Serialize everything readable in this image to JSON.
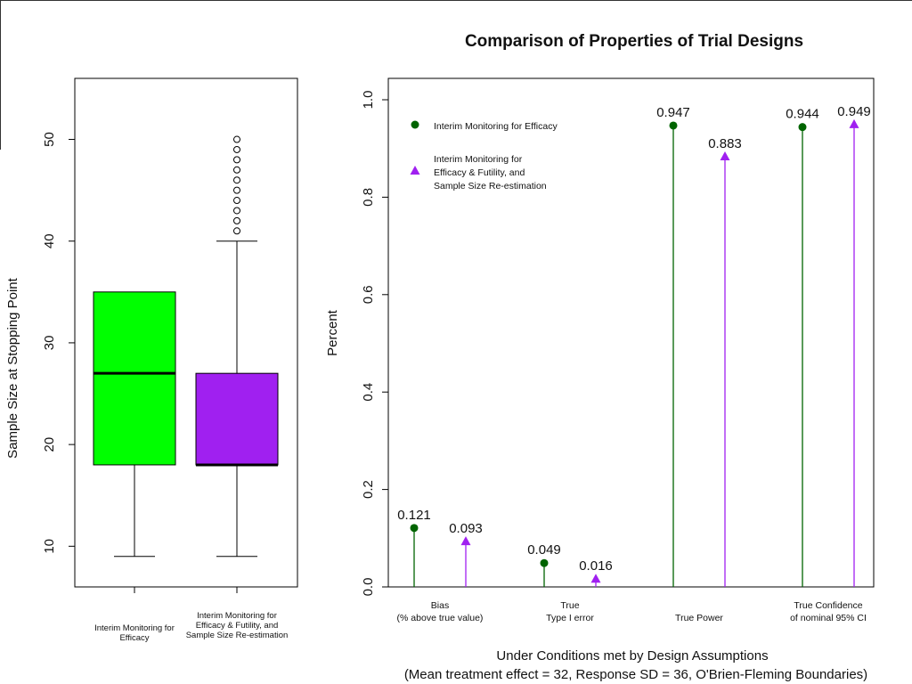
{
  "chart_data": [
    {
      "type": "box",
      "ylabel": "Sample Size at Stopping Point",
      "ylim": [
        6,
        56
      ],
      "y_ticks": [
        "10",
        "20",
        "30",
        "40",
        "50"
      ],
      "y_tick_values": [
        10,
        20,
        30,
        40,
        50
      ],
      "categories": [
        [
          "Interim Monitoring for",
          "Efficacy"
        ],
        [
          "Interim Monitoring for",
          "Efficacy & Futility, and",
          "Sample Size Re-estimation"
        ]
      ],
      "boxes": [
        {
          "min": 9,
          "q1": 18,
          "median": 27,
          "q3": 35,
          "max": 35,
          "outliers": [],
          "color": "#00ff00"
        },
        {
          "min": 9,
          "q1": 18,
          "median": 18,
          "q3": 27,
          "max": 40,
          "outliers": [
            41,
            42,
            43,
            44,
            45,
            46,
            47,
            48,
            49,
            50
          ],
          "color": "#a020f0"
        }
      ]
    },
    {
      "type": "lollipop",
      "title": "Comparison of Properties of Trial Designs",
      "ylabel": "Percent",
      "xlabel": "Under Conditions met by Design Assumptions",
      "xlabel2": "(Mean treatment effect = 32, Response SD = 36, O'Brien-Fleming Boundaries)",
      "ylim": [
        0,
        1.0
      ],
      "y_ticks": [
        "0.0",
        "0.2",
        "0.4",
        "0.6",
        "0.8",
        "1.0"
      ],
      "y_tick_values": [
        0,
        0.2,
        0.4,
        0.6,
        0.8,
        1.0
      ],
      "categories": [
        [
          "Bias",
          "(% above true value)"
        ],
        [
          "True",
          "Type I error"
        ],
        [
          "True Power"
        ],
        [
          "True Confidence",
          "of nominal 95% CI"
        ]
      ],
      "series": [
        {
          "name": "Interim Monitoring for Efficacy",
          "color": "#006400",
          "marker": "circle",
          "values": [
            0.121,
            0.049,
            0.947,
            0.944
          ],
          "labels": [
            "0.121",
            "0.049",
            "0.947",
            "0.944"
          ]
        },
        {
          "name": "Interim Monitoring for Efficacy & Futility, and Sample Size Re-estimation",
          "color": "#a020f0",
          "marker": "triangle",
          "values": [
            0.093,
            0.016,
            0.883,
            0.949
          ],
          "labels": [
            "0.093",
            "0.016",
            "0.883",
            "0.949"
          ]
        }
      ],
      "legend": {
        "position": "top-left",
        "entries": [
          [
            "Interim Monitoring for Efficacy"
          ],
          [
            "Interim Monitoring for",
            "Efficacy & Futility, and",
            "Sample Size Re-estimation"
          ]
        ]
      }
    }
  ]
}
